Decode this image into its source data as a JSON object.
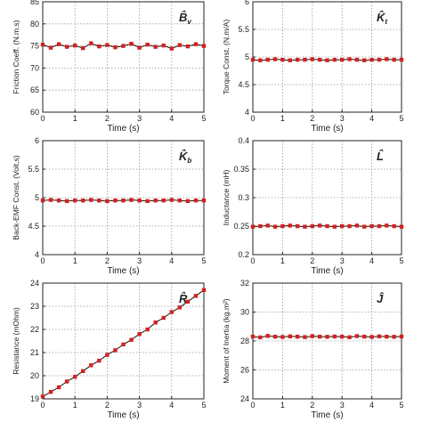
{
  "chart_data": [
    {
      "type": "line",
      "label": "B̂",
      "subscript": "v",
      "x_label": "Time (s)",
      "y_label": "Friction Coeff. (N.m.s)",
      "x": [
        0,
        0.25,
        0.5,
        0.75,
        1,
        1.25,
        1.5,
        1.75,
        2,
        2.25,
        2.5,
        2.75,
        3,
        3.25,
        3.5,
        3.75,
        4,
        4.25,
        4.5,
        4.75,
        5
      ],
      "series": [
        {
          "color": "#d42020",
          "values": [
            75.3,
            74.6,
            75.4,
            74.8,
            75.1,
            74.5,
            75.6,
            74.9,
            75.2,
            74.7,
            75.0,
            75.5,
            74.6,
            75.3,
            74.8,
            75.1,
            74.4,
            75.2,
            74.9,
            75.4,
            75.0
          ]
        }
      ],
      "xlim": [
        0,
        5
      ],
      "xticks": [
        0,
        1,
        2,
        3,
        4,
        5
      ],
      "ylim": [
        60,
        85
      ],
      "yticks": [
        60,
        65,
        70,
        75,
        80,
        85
      ],
      "grid": true
    },
    {
      "type": "line",
      "label": "K̂",
      "subscript": "t",
      "x_label": "Time (s)",
      "y_label": "Torque Const. (N.m/A)",
      "x": [
        0,
        0.25,
        0.5,
        0.75,
        1,
        1.25,
        1.5,
        1.75,
        2,
        2.25,
        2.5,
        2.75,
        3,
        3.25,
        3.5,
        3.75,
        4,
        4.25,
        4.5,
        4.75,
        5
      ],
      "series": [
        {
          "color": "#d42020",
          "values": [
            4.95,
            4.94,
            4.95,
            4.96,
            4.95,
            4.94,
            4.95,
            4.95,
            4.96,
            4.95,
            4.94,
            4.95,
            4.95,
            4.96,
            4.95,
            4.94,
            4.95,
            4.95,
            4.96,
            4.95,
            4.95
          ]
        }
      ],
      "xlim": [
        0,
        5
      ],
      "xticks": [
        0,
        1,
        2,
        3,
        4,
        5
      ],
      "ylim": [
        4,
        6
      ],
      "yticks": [
        4,
        4.5,
        5,
        5.5,
        6
      ],
      "grid": true
    },
    {
      "type": "line",
      "label": "K̂",
      "subscript": "b",
      "x_label": "Time (s)",
      "y_label": "Back-EMF Const. (Volt.s)",
      "x": [
        0,
        0.25,
        0.5,
        0.75,
        1,
        1.25,
        1.5,
        1.75,
        2,
        2.25,
        2.5,
        2.75,
        3,
        3.25,
        3.5,
        3.75,
        4,
        4.25,
        4.5,
        4.75,
        5
      ],
      "series": [
        {
          "color": "#d42020",
          "values": [
            4.95,
            4.96,
            4.95,
            4.94,
            4.95,
            4.95,
            4.96,
            4.95,
            4.94,
            4.95,
            4.95,
            4.96,
            4.95,
            4.94,
            4.95,
            4.95,
            4.96,
            4.95,
            4.94,
            4.95,
            4.95
          ]
        }
      ],
      "xlim": [
        0,
        5
      ],
      "xticks": [
        0,
        1,
        2,
        3,
        4,
        5
      ],
      "ylim": [
        4,
        6
      ],
      "yticks": [
        4,
        4.5,
        5,
        5.5,
        6
      ],
      "grid": true
    },
    {
      "type": "line",
      "label": "L̂",
      "subscript": "",
      "x_label": "Time (s)",
      "y_label": "Inductance (mH)",
      "x": [
        0,
        0.25,
        0.5,
        0.75,
        1,
        1.25,
        1.5,
        1.75,
        2,
        2.25,
        2.5,
        2.75,
        3,
        3.25,
        3.5,
        3.75,
        4,
        4.25,
        4.5,
        4.75,
        5
      ],
      "series": [
        {
          "color": "#d42020",
          "values": [
            0.249,
            0.25,
            0.251,
            0.249,
            0.25,
            0.251,
            0.25,
            0.249,
            0.25,
            0.251,
            0.25,
            0.249,
            0.25,
            0.25,
            0.251,
            0.249,
            0.25,
            0.25,
            0.251,
            0.25,
            0.249
          ]
        }
      ],
      "xlim": [
        0,
        5
      ],
      "xticks": [
        0,
        1,
        2,
        3,
        4,
        5
      ],
      "ylim": [
        0.2,
        0.4
      ],
      "yticks": [
        0.2,
        0.25,
        0.3,
        0.35,
        0.4
      ],
      "grid": true
    },
    {
      "type": "line",
      "label": "R̂",
      "subscript": "",
      "x_label": "Time (s)",
      "y_label": "Resistance (mOhm)",
      "x": [
        0,
        0.25,
        0.5,
        0.75,
        1,
        1.25,
        1.5,
        1.75,
        2,
        2.25,
        2.5,
        2.75,
        3,
        3.25,
        3.5,
        3.75,
        4,
        4.25,
        4.5,
        4.75,
        5
      ],
      "series": [
        {
          "color": "#d42020",
          "values": [
            19.1,
            19.3,
            19.5,
            19.75,
            19.95,
            20.2,
            20.45,
            20.65,
            20.9,
            21.1,
            21.35,
            21.55,
            21.8,
            22.0,
            22.3,
            22.5,
            22.75,
            22.95,
            23.2,
            23.45,
            23.7
          ]
        }
      ],
      "xlim": [
        0,
        5
      ],
      "xticks": [
        0,
        1,
        2,
        3,
        4,
        5
      ],
      "ylim": [
        19,
        24
      ],
      "yticks": [
        19,
        20,
        21,
        22,
        23,
        24
      ],
      "grid": true
    },
    {
      "type": "line",
      "label": "Ĵ",
      "subscript": "",
      "x_label": "Time (s)",
      "y_label": "Moment of Inertia (kg.m²)",
      "x": [
        0,
        0.25,
        0.5,
        0.75,
        1,
        1.25,
        1.5,
        1.75,
        2,
        2.25,
        2.5,
        2.75,
        3,
        3.25,
        3.5,
        3.75,
        4,
        4.25,
        4.5,
        4.75,
        5
      ],
      "series": [
        {
          "color": "#d42020",
          "values": [
            28.3,
            28.25,
            28.35,
            28.3,
            28.28,
            28.32,
            28.3,
            28.27,
            28.33,
            28.3,
            28.29,
            28.31,
            28.3,
            28.26,
            28.34,
            28.3,
            28.28,
            28.32,
            28.3,
            28.29,
            28.31
          ]
        }
      ],
      "xlim": [
        0,
        5
      ],
      "xticks": [
        0,
        1,
        2,
        3,
        4,
        5
      ],
      "ylim": [
        24,
        32
      ],
      "yticks": [
        24,
        26,
        28,
        30,
        32
      ],
      "grid": true
    }
  ]
}
